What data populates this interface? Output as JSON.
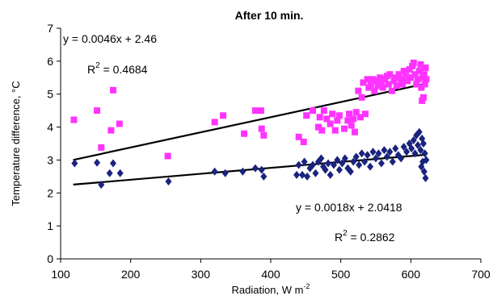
{
  "chart_data": {
    "type": "scatter",
    "title": "After 10 min.",
    "xlabel": "Radiation, W m",
    "xlabel_sup": "-2",
    "ylabel": "Temperature difference, °C",
    "xlim": [
      100,
      700
    ],
    "ylim": [
      0,
      7
    ],
    "xticks": [
      100,
      200,
      300,
      400,
      500,
      600,
      700
    ],
    "yticks": [
      0,
      1,
      2,
      3,
      4,
      5,
      6,
      7
    ],
    "grid": false,
    "legend": "none",
    "series": [
      {
        "marker": "square",
        "color": "#ff33ff",
        "trendline": {
          "slope": 0.0046,
          "intercept": 2.46,
          "x_range": [
            118,
            622
          ]
        },
        "points": [
          [
            119,
            4.22
          ],
          [
            152,
            4.5
          ],
          [
            158,
            3.38
          ],
          [
            172,
            3.9
          ],
          [
            175,
            5.12
          ],
          [
            184,
            4.1
          ],
          [
            253,
            3.12
          ],
          [
            320,
            4.15
          ],
          [
            332,
            4.35
          ],
          [
            362,
            3.8
          ],
          [
            378,
            4.5
          ],
          [
            386,
            4.5
          ],
          [
            387,
            3.95
          ],
          [
            390,
            3.75
          ],
          [
            440,
            3.7
          ],
          [
            447,
            3.55
          ],
          [
            451,
            4.35
          ],
          [
            460,
            4.5
          ],
          [
            468,
            4.0
          ],
          [
            470,
            4.3
          ],
          [
            473,
            3.9
          ],
          [
            476,
            4.5
          ],
          [
            480,
            4.25
          ],
          [
            485,
            4.1
          ],
          [
            488,
            4.4
          ],
          [
            492,
            3.9
          ],
          [
            495,
            4.2
          ],
          [
            498,
            4.35
          ],
          [
            505,
            3.95
          ],
          [
            510,
            4.2
          ],
          [
            512,
            4.4
          ],
          [
            515,
            4.05
          ],
          [
            518,
            4.25
          ],
          [
            520,
            3.85
          ],
          [
            522,
            4.45
          ],
          [
            525,
            5.1
          ],
          [
            528,
            4.3
          ],
          [
            530,
            4.9
          ],
          [
            532,
            5.35
          ],
          [
            535,
            4.4
          ],
          [
            538,
            5.45
          ],
          [
            540,
            5.2
          ],
          [
            543,
            5.3
          ],
          [
            546,
            5.45
          ],
          [
            548,
            5.1
          ],
          [
            550,
            5.4
          ],
          [
            553,
            5.25
          ],
          [
            556,
            5.5
          ],
          [
            558,
            5.35
          ],
          [
            560,
            5.2
          ],
          [
            563,
            5.45
          ],
          [
            566,
            5.55
          ],
          [
            568,
            5.3
          ],
          [
            570,
            5.6
          ],
          [
            573,
            5.1
          ],
          [
            576,
            5.4
          ],
          [
            578,
            5.5
          ],
          [
            580,
            5.25
          ],
          [
            583,
            5.6
          ],
          [
            586,
            5.45
          ],
          [
            588,
            5.3
          ],
          [
            590,
            5.7
          ],
          [
            593,
            5.55
          ],
          [
            595,
            5.4
          ],
          [
            598,
            5.75
          ],
          [
            600,
            5.5
          ],
          [
            602,
            5.85
          ],
          [
            604,
            5.95
          ],
          [
            606,
            5.6
          ],
          [
            608,
            5.3
          ],
          [
            610,
            5.45
          ],
          [
            612,
            5.7
          ],
          [
            614,
            5.9
          ],
          [
            615,
            5.2
          ],
          [
            616,
            4.8
          ],
          [
            617,
            5.5
          ],
          [
            618,
            4.9
          ],
          [
            619,
            5.6
          ],
          [
            620,
            5.3
          ],
          [
            621,
            5.8
          ],
          [
            622,
            5.45
          ]
        ]
      },
      {
        "marker": "diamond",
        "color": "#1a237e",
        "trendline": {
          "slope": 0.0018,
          "intercept": 2.0418,
          "x_range": [
            118,
            622
          ]
        },
        "points": [
          [
            120,
            2.9
          ],
          [
            152,
            2.92
          ],
          [
            158,
            2.25
          ],
          [
            170,
            2.6
          ],
          [
            175,
            2.9
          ],
          [
            185,
            2.6
          ],
          [
            254,
            2.35
          ],
          [
            320,
            2.65
          ],
          [
            335,
            2.6
          ],
          [
            360,
            2.65
          ],
          [
            378,
            2.75
          ],
          [
            387,
            2.7
          ],
          [
            390,
            2.5
          ],
          [
            437,
            2.55
          ],
          [
            440,
            2.85
          ],
          [
            445,
            2.55
          ],
          [
            448,
            2.95
          ],
          [
            452,
            2.5
          ],
          [
            456,
            2.75
          ],
          [
            460,
            2.85
          ],
          [
            464,
            2.6
          ],
          [
            468,
            2.95
          ],
          [
            472,
            3.05
          ],
          [
            475,
            2.8
          ],
          [
            478,
            2.7
          ],
          [
            482,
            2.9
          ],
          [
            485,
            2.55
          ],
          [
            490,
            2.85
          ],
          [
            495,
            3.0
          ],
          [
            498,
            2.7
          ],
          [
            502,
            2.9
          ],
          [
            506,
            3.05
          ],
          [
            510,
            2.75
          ],
          [
            514,
            2.65
          ],
          [
            518,
            2.95
          ],
          [
            522,
            3.1
          ],
          [
            526,
            2.85
          ],
          [
            530,
            3.2
          ],
          [
            534,
            2.95
          ],
          [
            538,
            3.15
          ],
          [
            542,
            2.8
          ],
          [
            546,
            3.25
          ],
          [
            550,
            3.05
          ],
          [
            554,
            3.2
          ],
          [
            558,
            2.9
          ],
          [
            562,
            3.3
          ],
          [
            566,
            3.1
          ],
          [
            570,
            3.25
          ],
          [
            574,
            2.95
          ],
          [
            578,
            3.35
          ],
          [
            582,
            3.15
          ],
          [
            586,
            3.05
          ],
          [
            590,
            3.4
          ],
          [
            594,
            3.25
          ],
          [
            598,
            3.5
          ],
          [
            601,
            3.35
          ],
          [
            604,
            3.6
          ],
          [
            606,
            3.2
          ],
          [
            608,
            3.75
          ],
          [
            610,
            3.45
          ],
          [
            612,
            3.85
          ],
          [
            614,
            3.3
          ],
          [
            615,
            2.8
          ],
          [
            616,
            3.65
          ],
          [
            617,
            2.95
          ],
          [
            618,
            3.5
          ],
          [
            619,
            2.65
          ],
          [
            620,
            3.2
          ],
          [
            621,
            2.45
          ],
          [
            622,
            3.0
          ]
        ]
      }
    ],
    "annotations": {
      "upper_eq": "y = 0.0046x + 2.46",
      "upper_r2_label": "R",
      "upper_r2_sup": "2",
      "upper_r2_value": " = 0.4684",
      "lower_eq": "y = 0.0018x + 2.0418",
      "lower_r2_label": "R",
      "lower_r2_sup": "2",
      "lower_r2_value": " = 0.2862"
    }
  }
}
